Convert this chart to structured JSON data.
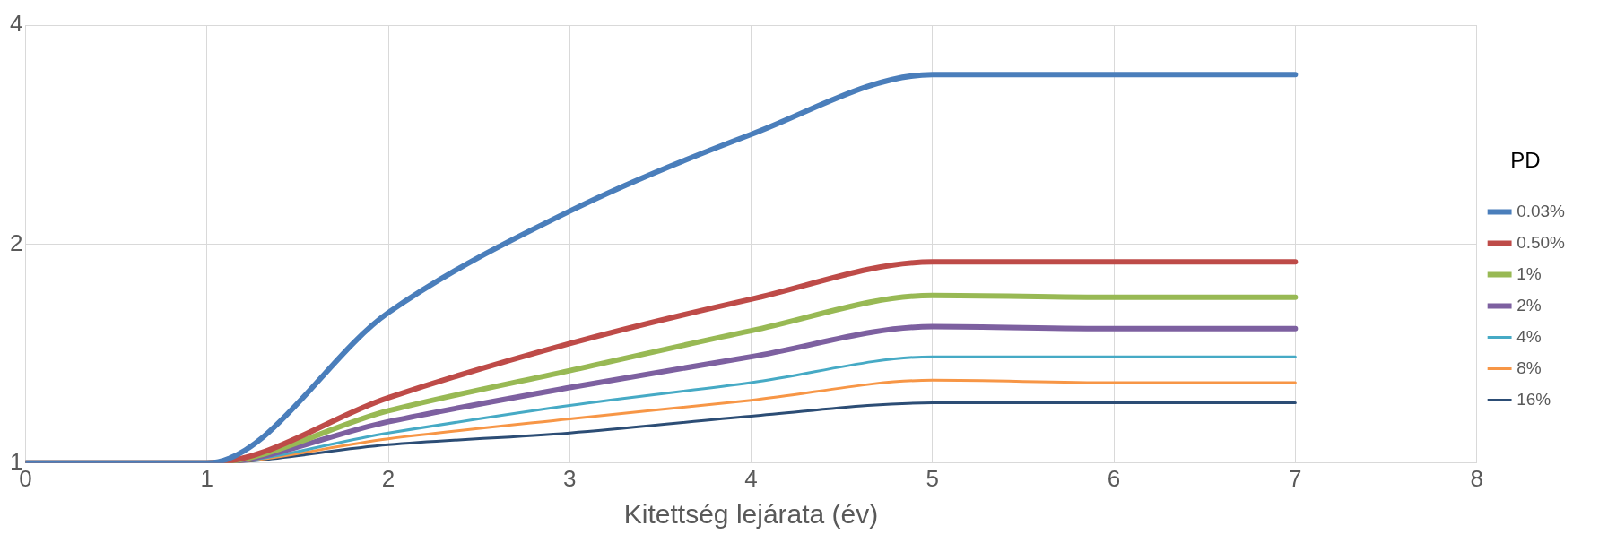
{
  "chart_data": {
    "type": "line",
    "xlabel": "Kitettség lejárata (év)",
    "legend_title": "PD",
    "legend": "right",
    "x": [
      0,
      1,
      2,
      3,
      4,
      5,
      6,
      7
    ],
    "xlim": [
      0,
      8
    ],
    "xticks": [
      0,
      1,
      2,
      3,
      4,
      5,
      6,
      7,
      8
    ],
    "ylim": [
      1,
      4
    ],
    "yticks": [
      1,
      2,
      4
    ],
    "log": "y",
    "grid": true,
    "marker": "none",
    "line_style": "solid",
    "series": [
      {
        "name": "0.03%",
        "color": "#4a7ebb",
        "values": [
          1,
          1,
          1.61,
          2.22,
          2.83,
          3.42,
          3.42,
          3.42
        ]
      },
      {
        "name": "0.50%",
        "color": "#be4b48",
        "values": [
          1,
          1,
          1.23,
          1.46,
          1.68,
          1.89,
          1.89,
          1.89
        ]
      },
      {
        "name": "1%",
        "color": "#98b954",
        "values": [
          1,
          1,
          1.18,
          1.34,
          1.52,
          1.7,
          1.69,
          1.69
        ]
      },
      {
        "name": "2%",
        "color": "#7d60a0",
        "values": [
          1,
          1,
          1.14,
          1.27,
          1.4,
          1.54,
          1.53,
          1.53
        ]
      },
      {
        "name": "4%",
        "color": "#46aac5",
        "values": [
          1,
          1,
          1.1,
          1.2,
          1.29,
          1.4,
          1.4,
          1.4
        ]
      },
      {
        "name": "8%",
        "color": "#f79646",
        "values": [
          1,
          1,
          1.08,
          1.15,
          1.22,
          1.3,
          1.29,
          1.29
        ]
      },
      {
        "name": "16%",
        "color": "#2c4d75",
        "values": [
          1,
          1,
          1.06,
          1.1,
          1.16,
          1.21,
          1.21,
          1.21
        ]
      }
    ]
  }
}
